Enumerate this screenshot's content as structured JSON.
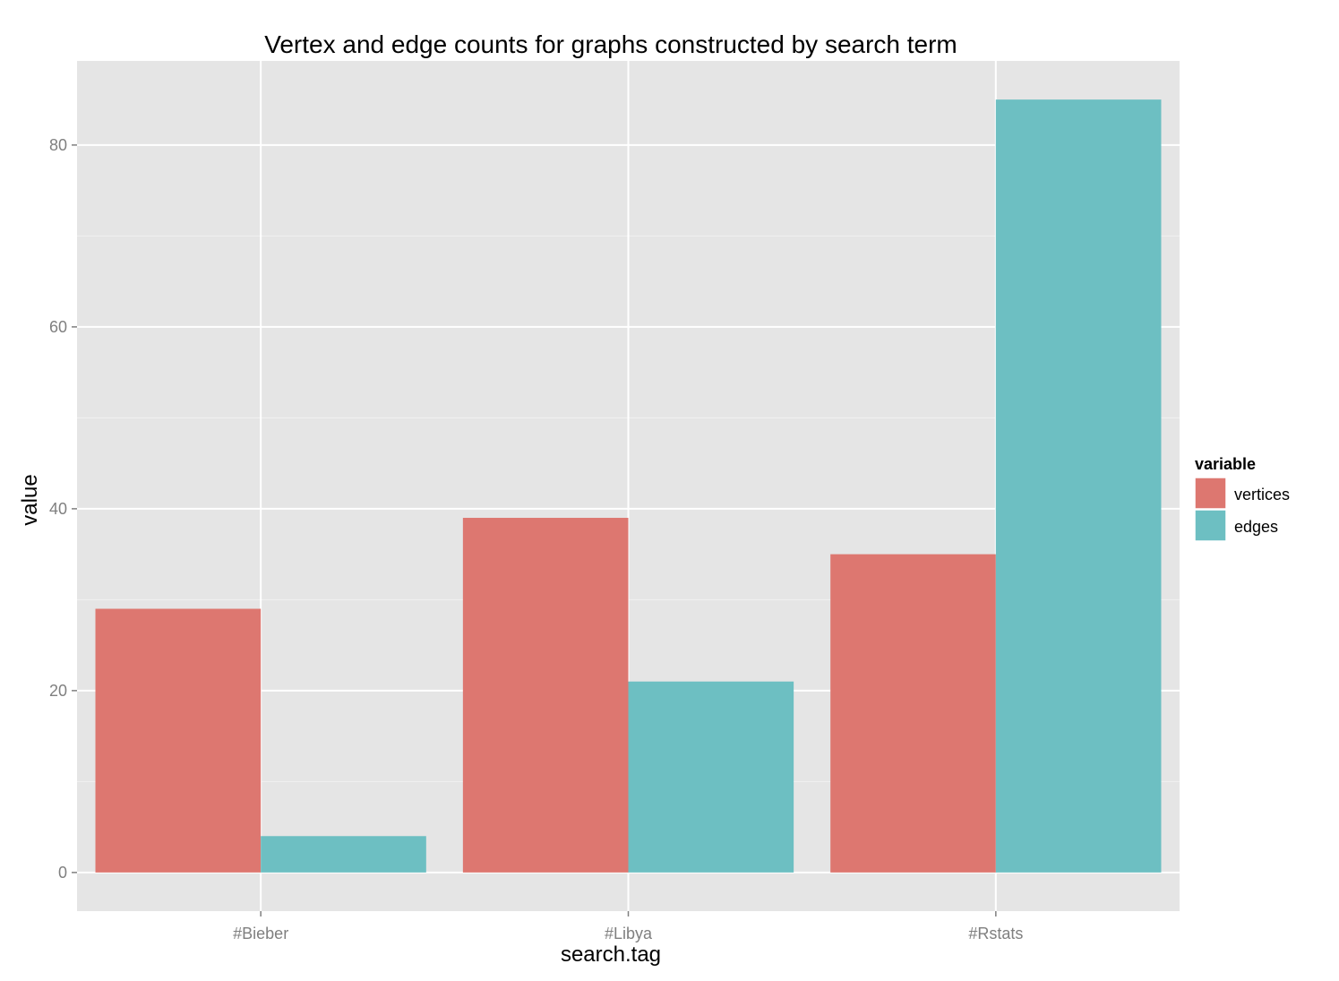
{
  "chart_data": {
    "type": "bar",
    "title": "Vertex and edge counts for graphs constructed by search term",
    "xlabel": "search.tag",
    "ylabel": "value",
    "categories": [
      "#Bieber",
      "#Libya",
      "#Rstats"
    ],
    "series": [
      {
        "name": "vertices",
        "values": [
          29,
          39,
          35
        ],
        "color": "#dd7770"
      },
      {
        "name": "edges",
        "values": [
          4,
          21,
          85
        ],
        "color": "#6dbfc2"
      }
    ],
    "ylim": [
      -4.25,
      89.25
    ],
    "yticks": [
      0,
      20,
      40,
      60,
      80
    ],
    "grid": true,
    "legend": {
      "title": "variable",
      "position": "right"
    },
    "colors": {
      "panel": "#e5e5e5",
      "grid_major": "#ffffff",
      "grid_minor": "#f2f2f2",
      "tick_text": "#7f7f7f"
    }
  }
}
